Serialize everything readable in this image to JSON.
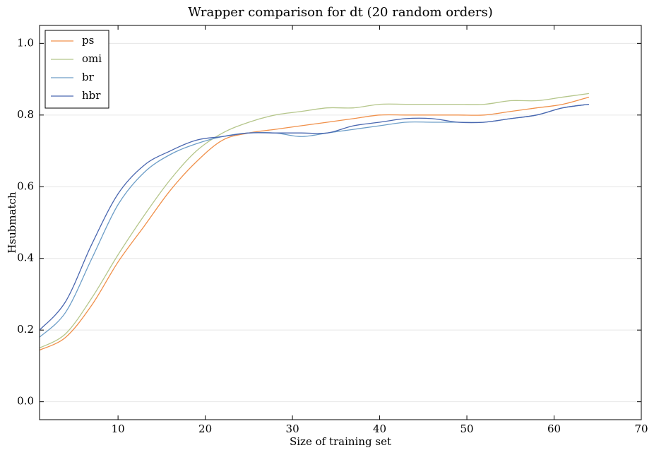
{
  "chart_data": {
    "type": "line",
    "title": "Wrapper comparison for dt (20 random orders)",
    "x_label": "Size of training set",
    "y_label": "Hsubmatch",
    "x": [
      1,
      4,
      7,
      10,
      13,
      16,
      19,
      22,
      25,
      28,
      31,
      34,
      37,
      40,
      43,
      46,
      49,
      52,
      55,
      58,
      61,
      64
    ],
    "series": [
      {
        "name": "ps",
        "color": "#f0904a",
        "values": [
          0.144,
          0.18,
          0.27,
          0.39,
          0.49,
          0.59,
          0.67,
          0.73,
          0.75,
          0.76,
          0.77,
          0.78,
          0.79,
          0.8,
          0.8,
          0.8,
          0.8,
          0.8,
          0.81,
          0.82,
          0.83,
          0.85
        ]
      },
      {
        "name": "omi",
        "color": "#b5c68b",
        "values": [
          0.15,
          0.19,
          0.29,
          0.41,
          0.52,
          0.62,
          0.7,
          0.75,
          0.78,
          0.8,
          0.81,
          0.82,
          0.82,
          0.83,
          0.83,
          0.83,
          0.83,
          0.83,
          0.84,
          0.84,
          0.85,
          0.86
        ]
      },
      {
        "name": "br",
        "color": "#6d9ec8",
        "values": [
          0.18,
          0.25,
          0.4,
          0.55,
          0.64,
          0.69,
          0.72,
          0.74,
          0.75,
          0.75,
          0.74,
          0.75,
          0.76,
          0.77,
          0.78,
          0.78,
          0.78,
          0.78,
          0.79,
          0.8,
          0.82,
          0.83
        ]
      },
      {
        "name": "hbr",
        "color": "#4a67b0",
        "values": [
          0.2,
          0.28,
          0.44,
          0.58,
          0.66,
          0.7,
          0.73,
          0.74,
          0.75,
          0.75,
          0.75,
          0.75,
          0.77,
          0.78,
          0.79,
          0.79,
          0.78,
          0.78,
          0.79,
          0.8,
          0.82,
          0.83
        ]
      }
    ],
    "xlim": [
      1,
      70
    ],
    "xticks": [
      10,
      20,
      30,
      40,
      50,
      60,
      70
    ],
    "ylim": [
      -0.05,
      1.05
    ],
    "yticks": [
      {
        "value": 0,
        "label": "0.0"
      },
      0.2,
      0.4,
      0.6,
      0.8,
      {
        "value": 1,
        "label": "1.0"
      }
    ],
    "grid": true,
    "legend": "upper-left"
  }
}
